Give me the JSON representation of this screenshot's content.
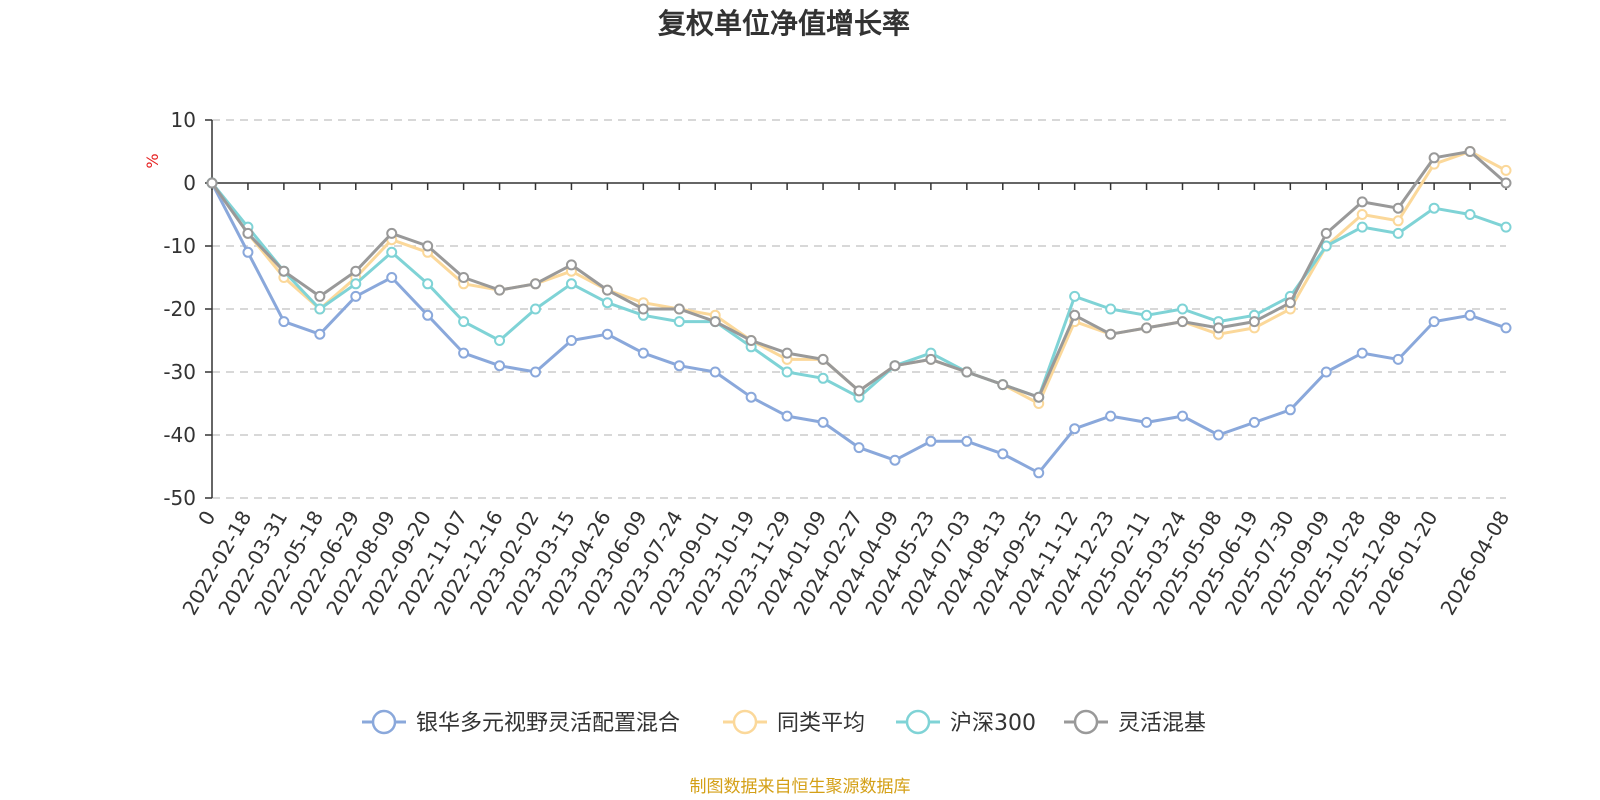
{
  "chart_data": {
    "type": "line",
    "title": "复权单位净值增长率",
    "ylabel": "%",
    "ylim": [
      -50,
      10
    ],
    "yticks": [
      10,
      0,
      -10,
      -20,
      -30,
      -40,
      -50
    ],
    "grid": true,
    "legend_position": "bottom",
    "x_labels": [
      "0",
      "2022-02-18",
      "2022-03-31",
      "2022-05-18",
      "2022-06-29",
      "2022-08-09",
      "2022-09-20",
      "2022-11-07",
      "2022-12-16",
      "2023-02-02",
      "2023-03-15",
      "2023-04-26",
      "2023-06-09",
      "2023-07-24",
      "2023-09-01",
      "2023-10-19",
      "2023-11-29",
      "2024-01-09",
      "2024-02-27",
      "2024-04-09",
      "2024-05-23",
      "2024-07-03",
      "2024-08-13",
      "2024-09-25",
      "2024-11-12",
      "2024-12-23",
      "2025-02-11",
      "2025-03-24",
      "2025-05-08",
      "2025-06-19",
      "2025-07-30",
      "2025-09-09",
      "2025-10-28",
      "2025-12-08",
      "2026-01-20",
      "2026-04-08"
    ],
    "x_label_index": [
      0,
      1,
      2,
      3,
      4,
      5,
      6,
      7,
      8,
      9,
      10,
      11,
      12,
      13,
      14,
      15,
      16,
      17,
      18,
      19,
      20,
      21,
      22,
      23,
      24,
      25,
      26,
      27,
      28,
      29,
      30,
      31,
      32,
      33,
      34,
      36
    ],
    "x_count": 37,
    "series": [
      {
        "name": "银华多元视野灵活配置混合",
        "color": "#8aa8db",
        "values": [
          0,
          -11,
          -22,
          -24,
          -18,
          -15,
          -21,
          -27,
          -29,
          -30,
          -25,
          -24,
          -27,
          -29,
          -30,
          -34,
          -37,
          -38,
          -42,
          -44,
          -41,
          -41,
          -43,
          -46,
          -39,
          -37,
          -38,
          -37,
          -40,
          -38,
          -36,
          -30,
          -27,
          -28,
          -22,
          -21,
          -23
        ]
      },
      {
        "name": "同类平均",
        "color": "#fbd89a",
        "values": [
          0,
          -8,
          -15,
          -20,
          -15,
          -9,
          -11,
          -16,
          -17,
          -16,
          -14,
          -17,
          -19,
          -20,
          -21,
          -25,
          -28,
          -28,
          -33,
          -29,
          -28,
          -30,
          -32,
          -35,
          -22,
          -24,
          -23,
          -22,
          -24,
          -23,
          -20,
          -10,
          -5,
          -6,
          3,
          5,
          2
        ]
      },
      {
        "name": "沪深300",
        "color": "#7fd3d6",
        "values": [
          0,
          -7,
          -14,
          -20,
          -16,
          -11,
          -16,
          -22,
          -25,
          -20,
          -16,
          -19,
          -21,
          -22,
          -22,
          -26,
          -30,
          -31,
          -34,
          -29,
          -27,
          -30,
          -32,
          -34,
          -18,
          -20,
          -21,
          -20,
          -22,
          -21,
          -18,
          -10,
          -7,
          -8,
          -4,
          -5,
          -7
        ]
      },
      {
        "name": "灵活混基",
        "color": "#999999",
        "values": [
          0,
          -8,
          -14,
          -18,
          -14,
          -8,
          -10,
          -15,
          -17,
          -16,
          -13,
          -17,
          -20,
          -20,
          -22,
          -25,
          -27,
          -28,
          -33,
          -29,
          -28,
          -30,
          -32,
          -34,
          -21,
          -24,
          -23,
          -22,
          -23,
          -22,
          -19,
          -8,
          -3,
          -4,
          4,
          5,
          0
        ]
      }
    ]
  },
  "footer": {
    "source": "制图数据来自恒生聚源数据库",
    "source_color": "#d4a017"
  },
  "unit_color": "#e62020"
}
